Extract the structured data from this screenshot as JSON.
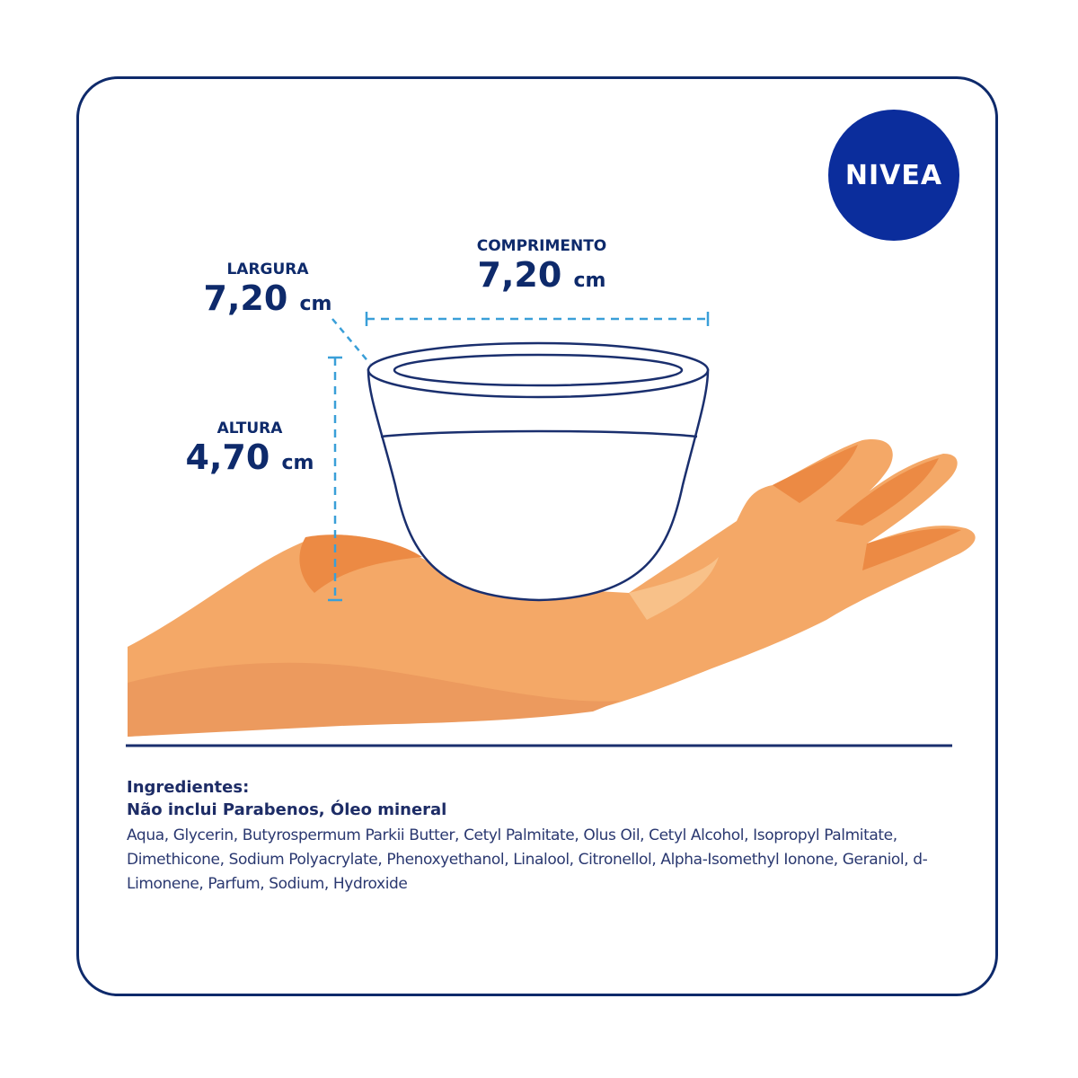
{
  "brand": {
    "logo_text": "NIVEA",
    "color": "#0b2d9c"
  },
  "dimensions": {
    "width": {
      "label": "LARGURA",
      "value": "7,20",
      "unit": "cm"
    },
    "length": {
      "label": "COMPRIMENTO",
      "value": "7,20",
      "unit": "cm"
    },
    "height": {
      "label": "ALTURA",
      "value": "4,70",
      "unit": "cm"
    }
  },
  "ingredients": {
    "heading": "Ingredientes:",
    "subheading": "Não inclui Parabenos, Óleo mineral",
    "list": "Aqua, Glycerin, Butyrospermum Parkii Butter, Cetyl Palmitate, Olus Oil, Cetyl Alcohol, Isopropyl Palmitate, Dimethicone, Sodium Polyacrylate, Phenoxyethanol, Linalool, Citronellol, Alpha-Isomethyl Ionone, Geraniol, d-Limonene, Parfum, Sodium, Hydroxide"
  },
  "colors": {
    "navy": "#0e2a6b",
    "dash": "#3a9fd8",
    "skin": "#f4a867",
    "skin_dark": "#ec8a44",
    "skin_light": "#f8c189"
  }
}
